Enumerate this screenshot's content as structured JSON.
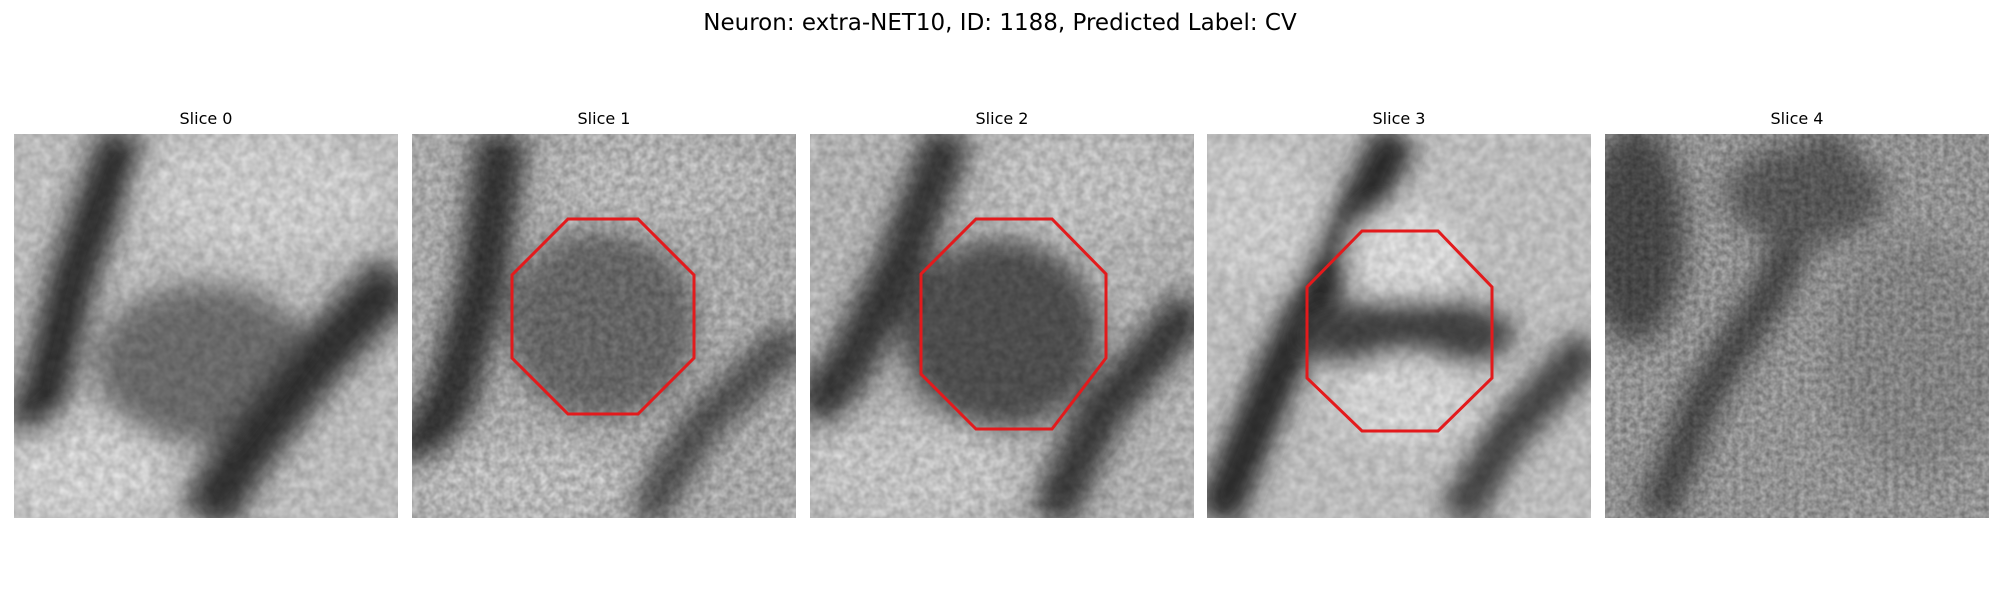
{
  "figure": {
    "title": "Neuron: extra-NET10, ID: 1188, Predicted Label: CV"
  },
  "panels": [
    {
      "title": "Slice 0",
      "has_marker": false
    },
    {
      "title": "Slice 1",
      "has_marker": true
    },
    {
      "title": "Slice 2",
      "has_marker": true
    },
    {
      "title": "Slice 3",
      "has_marker": true
    },
    {
      "title": "Slice 4",
      "has_marker": false
    }
  ],
  "colors": {
    "marker": "#e31a1c"
  },
  "icons": {
    "marker": "octagon-outline-icon"
  }
}
